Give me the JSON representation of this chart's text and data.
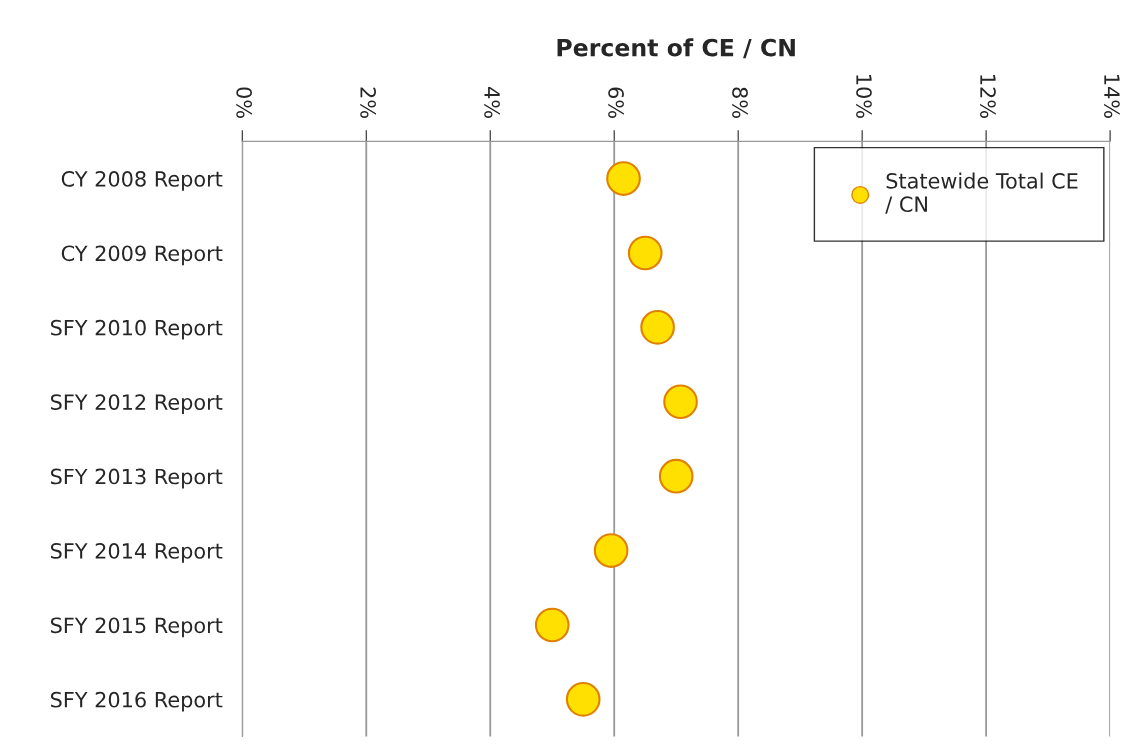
{
  "chart_data": {
    "type": "scatter",
    "orientation": "horizontal",
    "xlabel": "Percent of CE / CN",
    "categories": [
      "CY 2008 Report",
      "CY 2009 Report",
      "SFY 2010 Report",
      "SFY 2012 Report",
      "SFY 2013 Report",
      "SFY 2014 Report",
      "SFY 2015 Report",
      "SFY 2016 Report"
    ],
    "series": [
      {
        "name": "Statewide Total CE / CN",
        "color": "#ffe000",
        "values": [
          6.15,
          6.5,
          6.7,
          7.07,
          7.0,
          5.95,
          5.0,
          5.5
        ]
      }
    ],
    "xlim": [
      0,
      14
    ],
    "xticks": [
      {
        "value": 0,
        "label": "0%"
      },
      {
        "value": 2,
        "label": "2%"
      },
      {
        "value": 4,
        "label": "4%"
      },
      {
        "value": 6,
        "label": "6%"
      },
      {
        "value": 8,
        "label": "8%"
      },
      {
        "value": 10,
        "label": "10%"
      },
      {
        "value": 12,
        "label": "12%"
      },
      {
        "value": 14,
        "label": "14%"
      }
    ],
    "grid": "x",
    "legend": "top right",
    "marker": "circle"
  }
}
